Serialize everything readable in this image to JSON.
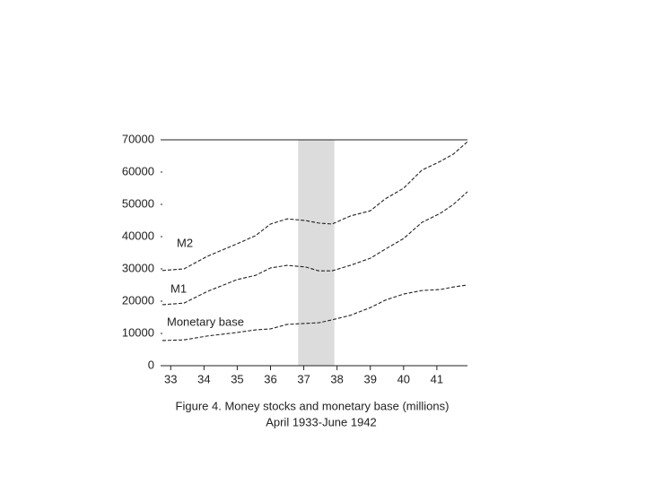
{
  "chart_data": {
    "type": "line",
    "caption": [
      "Figure 4.  Money stocks and monetary base (millions)",
      "April 1933-June 1942"
    ],
    "x": [
      1933.25,
      1933.9,
      1934.6,
      1935.5,
      1936.05,
      1936.5,
      1937,
      1937.55,
      1937.95,
      1938.35,
      1938.9,
      1939.5,
      1939.95,
      1940.5,
      1941.05,
      1941.6,
      1942,
      1942.42
    ],
    "series": [
      {
        "name": "M2",
        "color": "#222222",
        "values": [
          29500,
          30000,
          33900,
          37800,
          40300,
          43900,
          45500,
          45000,
          44200,
          43900,
          46400,
          48000,
          51700,
          55000,
          60600,
          63300,
          65600,
          69400
        ]
      },
      {
        "name": "M1",
        "color": "#222222",
        "values": [
          18900,
          19400,
          23000,
          26700,
          28000,
          30300,
          31100,
          30600,
          29400,
          29400,
          31100,
          33300,
          36100,
          39400,
          44400,
          47200,
          50000,
          53900
        ]
      },
      {
        "name": "Monetary base",
        "color": "#222222",
        "values": [
          7800,
          8000,
          9200,
          10300,
          11100,
          11400,
          12800,
          13100,
          13300,
          14200,
          15600,
          18000,
          20300,
          22200,
          23300,
          23600,
          24400,
          25000
        ]
      }
    ],
    "shaded_region": [
      1937.33,
      1938.42
    ],
    "shade_color": "#dcdcdc",
    "xlim": [
      1933.25,
      1942.42
    ],
    "xticks": [
      {
        "value": 1933.5,
        "label": "33"
      },
      {
        "value": 1934.5,
        "label": "34"
      },
      {
        "value": 1935.5,
        "label": "35"
      },
      {
        "value": 1936.5,
        "label": "36"
      },
      {
        "value": 1937.5,
        "label": "37"
      },
      {
        "value": 1938.5,
        "label": "38"
      },
      {
        "value": 1939.5,
        "label": "39"
      },
      {
        "value": 1940.5,
        "label": "40"
      },
      {
        "value": 1941.5,
        "label": "41"
      }
    ],
    "ylim": [
      0,
      70000
    ],
    "yticks": [
      0,
      10000,
      20000,
      30000,
      40000,
      50000,
      60000,
      70000
    ],
    "dashed": true
  }
}
